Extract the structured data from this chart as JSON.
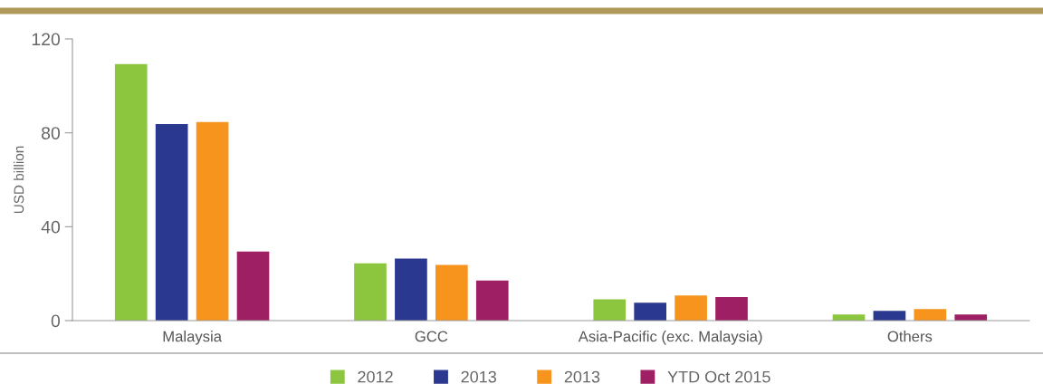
{
  "chart_data": {
    "type": "bar",
    "ylabel": "USD billion",
    "categories": [
      "Malaysia",
      "GCC",
      "Asia-Pacific (exc. Malaysia)",
      "Others"
    ],
    "series": [
      {
        "name": "2012",
        "color": "#8cc63f",
        "values": [
          109.3,
          24.4,
          9.1,
          2.6
        ]
      },
      {
        "name": "2013",
        "color": "#2b388f",
        "values": [
          83.7,
          26.4,
          7.6,
          4.1
        ]
      },
      {
        "name": "2013",
        "color": "#f7941d",
        "values": [
          84.6,
          23.7,
          10.7,
          4.9
        ]
      },
      {
        "name": "YTD Oct 2015",
        "color": "#9e1f63",
        "values": [
          29.4,
          17.1,
          10,
          2.6
        ]
      }
    ],
    "ylim": [
      0,
      120
    ],
    "yticks": [
      0,
      40,
      80,
      120
    ],
    "grid": false,
    "legend": "bottom"
  }
}
